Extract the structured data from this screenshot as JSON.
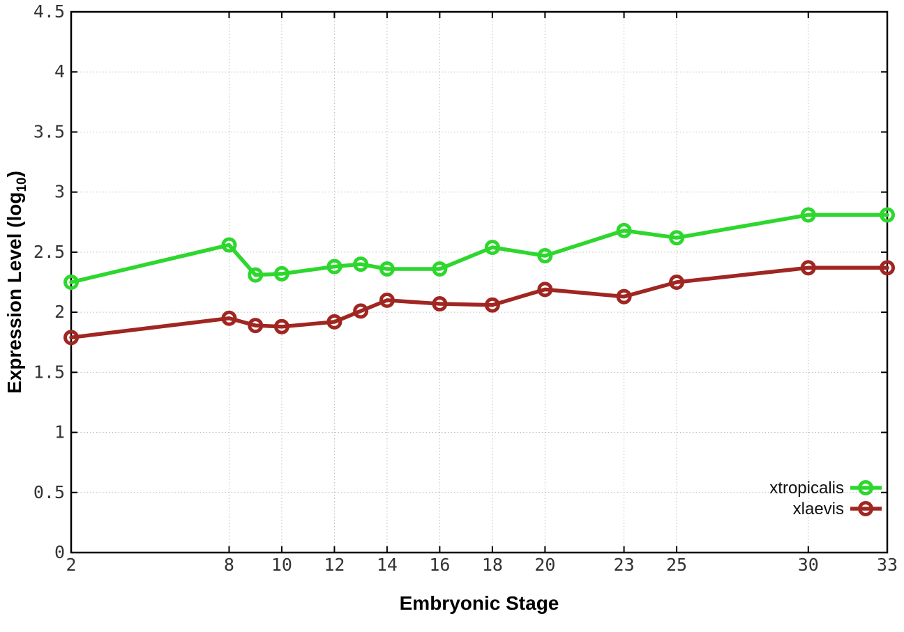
{
  "chart_data": {
    "type": "line",
    "x": [
      2,
      8,
      9,
      10,
      12,
      13,
      14,
      16,
      18,
      20,
      23,
      25,
      30,
      33
    ],
    "series": [
      {
        "name": "xtropicalis",
        "color": "#2dd72d",
        "values": [
          2.25,
          2.56,
          2.31,
          2.32,
          2.38,
          2.4,
          2.36,
          2.36,
          2.54,
          2.47,
          2.68,
          2.62,
          2.81,
          2.81
        ]
      },
      {
        "name": "xlaevis",
        "color": "#a02621",
        "values": [
          1.79,
          1.95,
          1.89,
          1.88,
          1.92,
          2.01,
          2.1,
          2.07,
          2.06,
          2.19,
          2.13,
          2.25,
          2.37,
          2.37
        ]
      }
    ],
    "xlabel": "Embryonic Stage",
    "ylabel": "Expression Level (log10)",
    "ylabel_parts": {
      "pre": "Expression Level (log",
      "sub": "10",
      "post": ")"
    },
    "xlim": [
      2,
      33
    ],
    "ylim": [
      0,
      4.5
    ],
    "xticks": [
      "2",
      "8",
      "10",
      "12",
      "14",
      "16",
      "18",
      "20",
      "23",
      "25",
      "30",
      "33"
    ],
    "yticks": [
      "0",
      "0.5",
      "1",
      "1.5",
      "2",
      "2.5",
      "3",
      "3.5",
      "4",
      "4.5"
    ],
    "grid": true,
    "legend_position": "bottom-right",
    "marker": "open-circle"
  },
  "colors": {
    "background": "#ffffff",
    "grid": "#bcbcbc",
    "axis": "#000000",
    "tick_label": "#333333",
    "legend_text": "#111111"
  }
}
